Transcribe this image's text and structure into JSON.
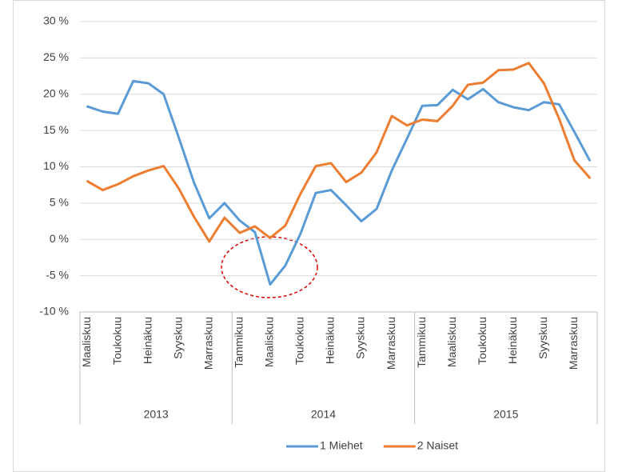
{
  "chart_data": {
    "type": "line",
    "categories": [
      "Maaliskuu",
      null,
      "Toukokuu",
      null,
      "Heinäkuu",
      null,
      "Syyskuu",
      null,
      "Marraskuu",
      null,
      "Tammikuu",
      null,
      "Maaliskuu",
      null,
      "Toukokuu",
      null,
      "Heinäkuu",
      null,
      "Syyskuu",
      null,
      "Marraskuu",
      null,
      "Tammikuu",
      null,
      "Maaliskuu",
      null,
      "Toukokuu",
      null,
      "Heinäkuu",
      null,
      "Syyskuu",
      null,
      "Marraskuu",
      null
    ],
    "x_groups": [
      {
        "label": "2013",
        "span": 10
      },
      {
        "label": "2014",
        "span": 12
      },
      {
        "label": "2015",
        "span": 12
      }
    ],
    "series": [
      {
        "name": "1 Miehet",
        "color": "#5b9bd5",
        "values": [
          18.3,
          17.6,
          17.3,
          21.8,
          21.5,
          20.0,
          14.0,
          7.8,
          2.9,
          5.0,
          2.6,
          1.0,
          -6.2,
          -3.6,
          0.8,
          6.4,
          6.8,
          4.7,
          2.5,
          4.2,
          9.5,
          13.9,
          18.4,
          18.5,
          20.6,
          19.3,
          20.7,
          18.9,
          18.2,
          17.8,
          18.9,
          18.6,
          14.8,
          10.9
        ]
      },
      {
        "name": "2 Naiset",
        "color": "#ed7d31",
        "values": [
          8.0,
          6.8,
          7.6,
          8.7,
          9.5,
          10.1,
          7.0,
          3.1,
          -0.3,
          3.0,
          0.9,
          1.8,
          0.2,
          1.9,
          6.3,
          10.1,
          10.5,
          7.9,
          9.2,
          12.0,
          17.0,
          15.7,
          16.5,
          16.3,
          18.4,
          21.3,
          21.6,
          23.3,
          23.4,
          24.3,
          21.5,
          16.6,
          10.9,
          8.5
        ]
      }
    ],
    "ylim": [
      -10,
      30
    ],
    "yticks": [
      {
        "value": -10,
        "label": "-10 %"
      },
      {
        "value": -5,
        "label": "-5 %"
      },
      {
        "value": 0,
        "label": "0 %"
      },
      {
        "value": 5,
        "label": "5 %"
      },
      {
        "value": 10,
        "label": "10 %"
      },
      {
        "value": 15,
        "label": "15 %"
      },
      {
        "value": 20,
        "label": "20 %"
      },
      {
        "value": 25,
        "label": "25 %"
      },
      {
        "value": 30,
        "label": "30 %"
      }
    ],
    "grid": true,
    "legend": "bottom"
  }
}
